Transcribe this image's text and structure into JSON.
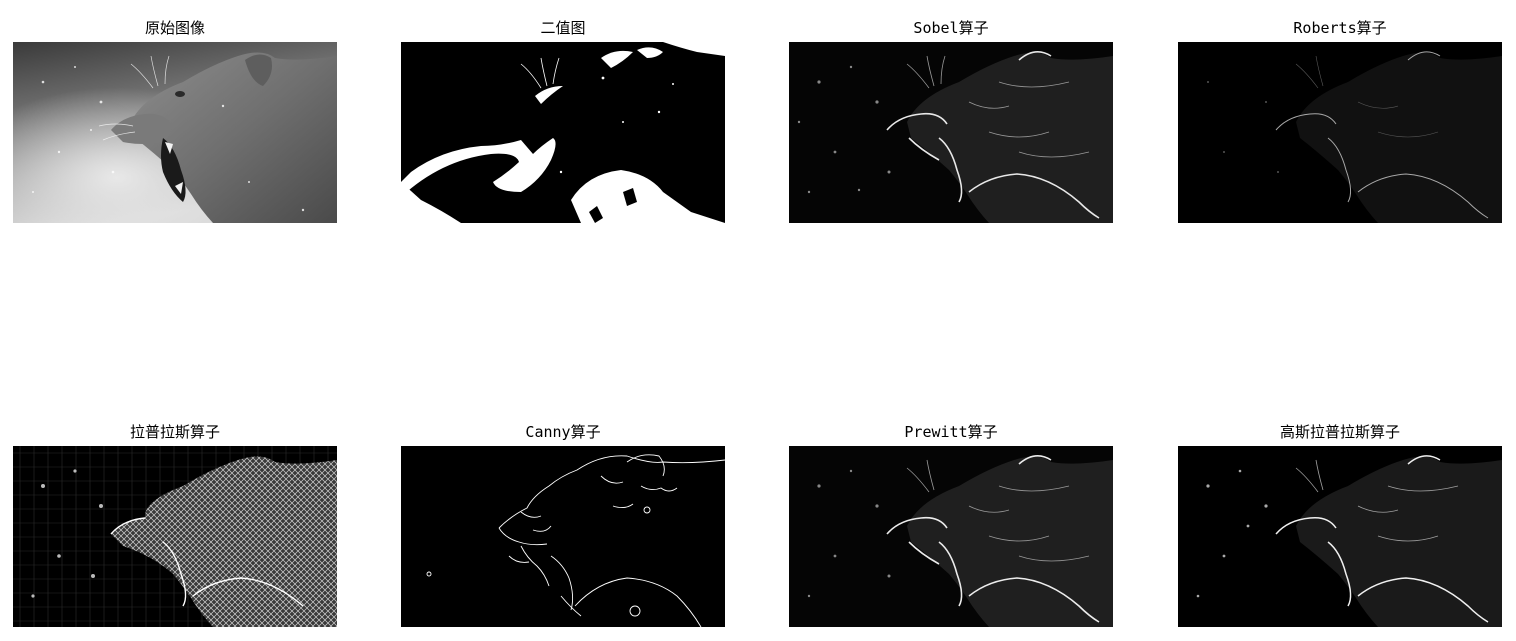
{
  "figure": {
    "panels": [
      {
        "title": "原始图像",
        "filter": "original"
      },
      {
        "title": "二值图",
        "filter": "binary"
      },
      {
        "title": "Sobel算子",
        "filter": "sobel"
      },
      {
        "title": "Roberts算子",
        "filter": "roberts"
      },
      {
        "title": "拉普拉斯算子",
        "filter": "laplacian"
      },
      {
        "title": "Canny算子",
        "filter": "canny"
      },
      {
        "title": "Prewitt算子",
        "filter": "prewitt"
      },
      {
        "title": "高斯拉普拉斯算子",
        "filter": "log"
      }
    ]
  },
  "colors": {
    "background": "#ffffff",
    "title_text": "#000000",
    "edge_background": "#000000",
    "edge_stroke": "#ffffff"
  }
}
